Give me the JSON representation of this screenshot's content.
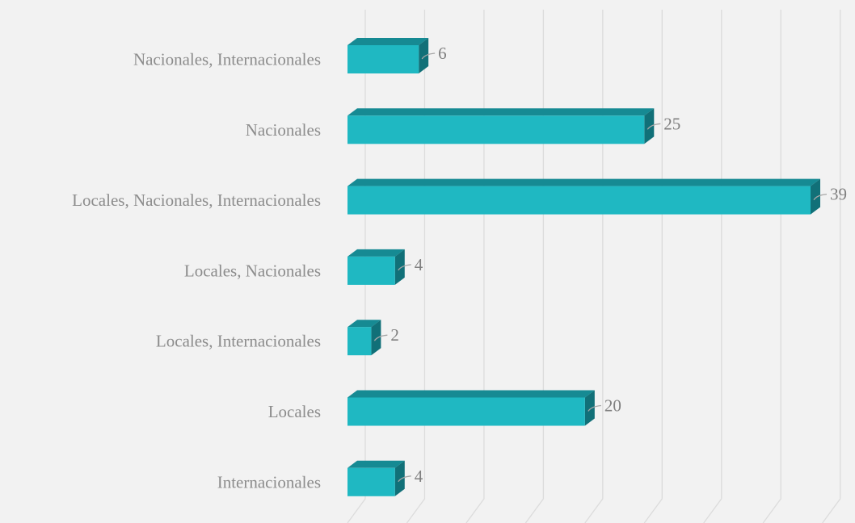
{
  "chart_data": {
    "type": "bar",
    "orientation": "horizontal",
    "style": "3d",
    "categories": [
      "Nacionales, Internacionales",
      "Nacionales",
      "Locales, Nacionales, Internacionales",
      "Locales, Nacionales",
      "Locales, Internacionales",
      "Locales",
      "Internacionales"
    ],
    "values": [
      6,
      25,
      39,
      4,
      2,
      20,
      4
    ],
    "xlim": [
      0,
      40
    ],
    "grid": true,
    "colors": {
      "bar_front": "#1fb8c2",
      "bar_top": "#168a93",
      "bar_side": "#117078",
      "background": "#f2f2f2",
      "label_text": "#8c8c8c",
      "value_text": "#7f7f7f",
      "grid": "#dcdcdc"
    }
  }
}
